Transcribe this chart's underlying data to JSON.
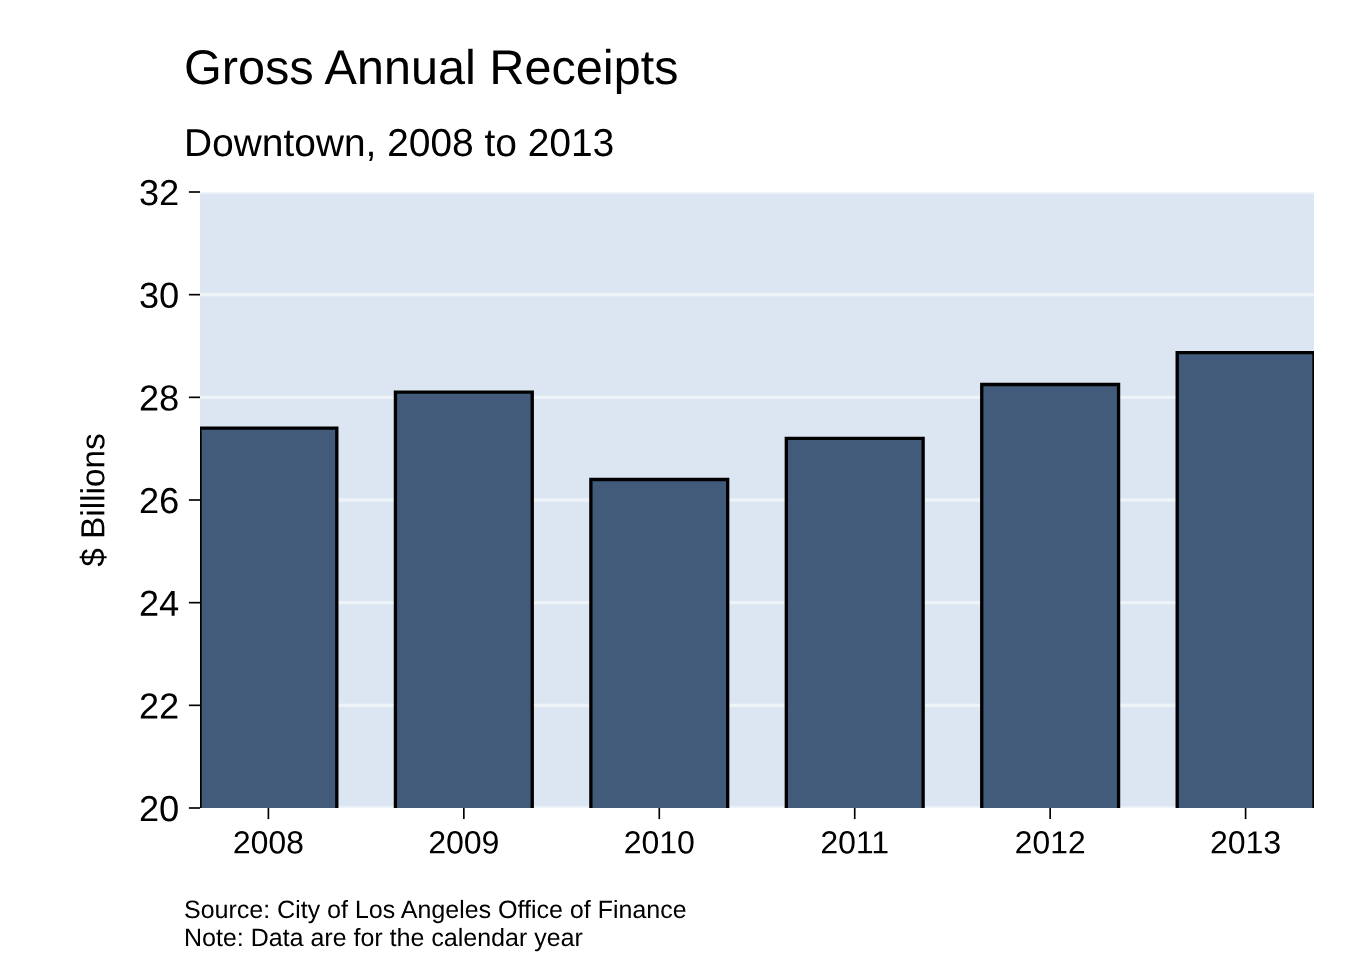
{
  "chart_data": {
    "type": "bar",
    "title": "Gross Annual Receipts",
    "subtitle": "Downtown, 2008 to 2013",
    "ylabel": "$ Billions",
    "categories": [
      "2008",
      "2009",
      "2010",
      "2011",
      "2012",
      "2013"
    ],
    "values": [
      27.4,
      28.1,
      26.4,
      27.2,
      28.25,
      28.87
    ],
    "color": "#435b7b",
    "ylim": [
      20,
      32
    ],
    "yticks": [
      20,
      22,
      24,
      26,
      28,
      30,
      32
    ],
    "grid": "y",
    "annotations": [
      "Source: City of Los Angeles Office of Finance",
      "Note: Data are for the calendar year"
    ]
  }
}
